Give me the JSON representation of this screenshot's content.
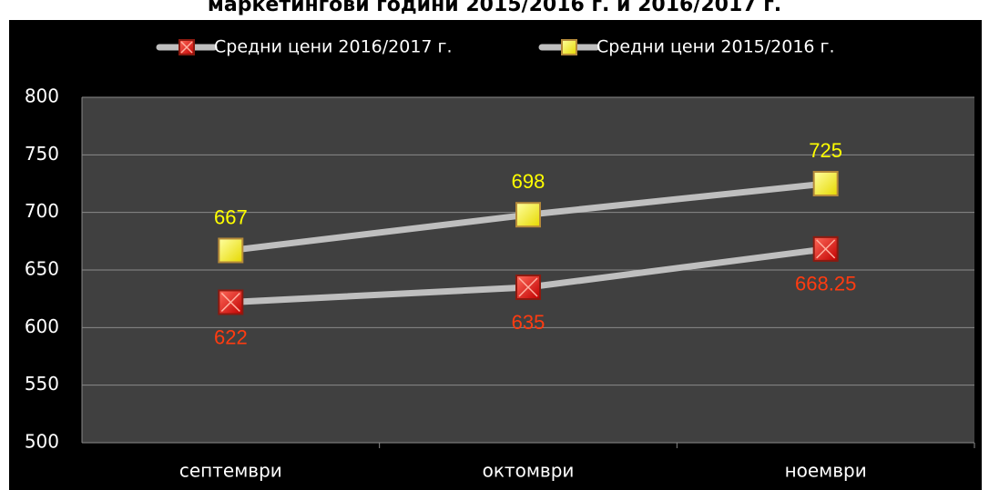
{
  "chart_data": {
    "type": "line",
    "title": "маркетингови години 2015/2016 г. и 2016/2017 г.",
    "categories": [
      "септември",
      "октомври",
      "ноември"
    ],
    "series": [
      {
        "name": "Средни цени 2016/2017 г.",
        "color": "#e8261c",
        "label_color": "#ff3b10",
        "values": [
          622,
          635,
          668.25
        ]
      },
      {
        "name": "Средни цени 2015/2016 г.",
        "color": "#ffff00",
        "label_color": "#ffff00",
        "values": [
          667,
          698,
          725
        ]
      }
    ],
    "line_color": "#bfbfbf",
    "ylim": [
      500,
      800
    ],
    "yticks": [
      500,
      550,
      600,
      650,
      700,
      750,
      800
    ],
    "grid": true
  }
}
